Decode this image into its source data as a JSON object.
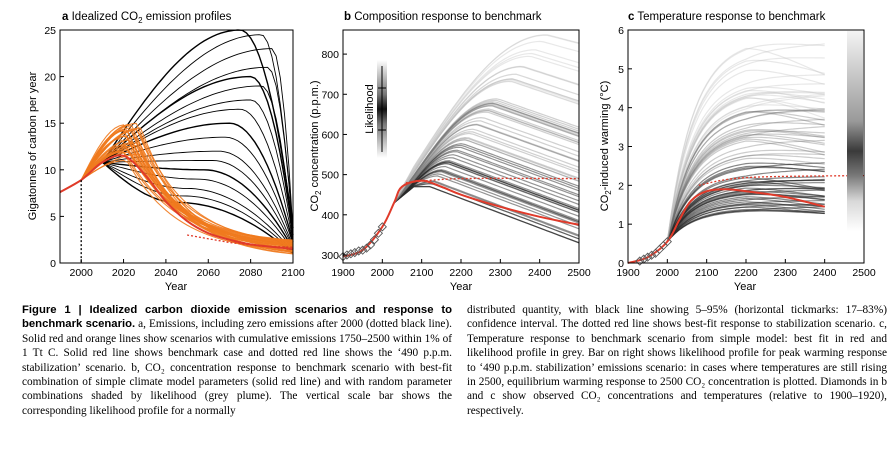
{
  "panels": [
    {
      "letter": "a",
      "title_pre": "Idealized CO",
      "title_sub": "2",
      "title_post": " emission profiles",
      "xlabel": "Year",
      "ylabel": "Gigatonnes of carbon per year",
      "xticks": [
        "2000",
        "2020",
        "2040",
        "2060",
        "2080",
        "2100"
      ],
      "yticks": [
        "0",
        "5",
        "10",
        "15",
        "20",
        "25"
      ]
    },
    {
      "letter": "b",
      "title": "Composition response to benchmark",
      "xlabel": "Year",
      "ylabel_pre": "CO",
      "ylabel_sub": "2",
      "ylabel_post": " concentration (p.p.m.)",
      "inset_label": "Likelihood",
      "xticks": [
        "1900",
        "2000",
        "2100",
        "2200",
        "2300",
        "2400",
        "2500"
      ],
      "yticks": [
        "300",
        "400",
        "500",
        "600",
        "700",
        "800"
      ]
    },
    {
      "letter": "c",
      "title": "Temperature response to benchmark",
      "xlabel": "Year",
      "ylabel_pre": "CO",
      "ylabel_sub": "2",
      "ylabel_post": "-induced warming (°C)",
      "xticks": [
        "1900",
        "2000",
        "2100",
        "2200",
        "2300",
        "2400",
        "2500"
      ],
      "yticks": [
        "0",
        "1",
        "2",
        "3",
        "4",
        "5",
        "6"
      ]
    }
  ],
  "chart_data": [
    {
      "type": "line",
      "panel": "a",
      "title": "Idealized CO2 emission profiles",
      "xlabel": "Year",
      "ylabel": "Gigatonnes of carbon per year",
      "xlim": [
        1990,
        2100
      ],
      "ylim": [
        0,
        25
      ],
      "series": [
        {
          "kind": "benchmark",
          "color": "#e03a2a",
          "x": [
            1990,
            2000,
            2010,
            2020,
            2030,
            2040,
            2050,
            2060,
            2070,
            2080,
            2100
          ],
          "y": [
            7.6,
            8.9,
            10.8,
            11.5,
            9.5,
            6.6,
            4.5,
            3.2,
            2.5,
            2.0,
            1.5
          ]
        },
        {
          "kind": "stabilization-490ppm",
          "style": "dotted",
          "color": "#e03a2a",
          "x": [
            2050,
            2070,
            2085,
            2100
          ],
          "y": [
            3.0,
            2.2,
            1.8,
            1.7
          ]
        },
        {
          "kind": "zero-after-2000",
          "style": "dotted",
          "color": "#000000",
          "x": [
            2000,
            2000
          ],
          "y": [
            8.9,
            0
          ]
        }
      ]
    },
    {
      "type": "line",
      "panel": "b",
      "title": "Composition response to benchmark",
      "xlabel": "Year",
      "ylabel": "CO2 concentration (p.p.m.)",
      "xlim": [
        1900,
        2500
      ],
      "ylim": [
        280,
        860
      ],
      "series": [
        {
          "kind": "best-fit",
          "color": "#e03a2a",
          "x": [
            1900,
            1950,
            2000,
            2030,
            2050,
            2100,
            2150,
            2200,
            2300,
            2400,
            2500
          ],
          "y": [
            296,
            312,
            370,
            430,
            470,
            485,
            470,
            450,
            420,
            395,
            375
          ]
        },
        {
          "kind": "stabilization",
          "style": "dotted",
          "color": "#e03a2a",
          "x": [
            2060,
            2200,
            2500
          ],
          "y": [
            480,
            490,
            490
          ]
        },
        {
          "kind": "observed",
          "marker": "diamond",
          "x": [
            1900,
            1910,
            1920,
            1930,
            1940,
            1950,
            1960,
            1970,
            1980,
            1990,
            2000
          ],
          "y": [
            296,
            300,
            303,
            306,
            310,
            312,
            317,
            325,
            338,
            354,
            370
          ]
        }
      ]
    },
    {
      "type": "line",
      "panel": "c",
      "title": "Temperature response to benchmark",
      "xlabel": "Year",
      "ylabel": "CO2-induced warming (°C)",
      "xlim": [
        1900,
        2500
      ],
      "ylim": [
        0,
        6
      ],
      "series": [
        {
          "kind": "best-fit",
          "color": "#e03a2a",
          "x": [
            1900,
            1950,
            2000,
            2030,
            2060,
            2100,
            2150,
            2200,
            2300,
            2400
          ],
          "y": [
            0.0,
            0.15,
            0.55,
            1.1,
            1.6,
            1.85,
            1.9,
            1.85,
            1.7,
            1.45
          ]
        },
        {
          "kind": "stabilization",
          "style": "dotted",
          "color": "#e03a2a",
          "x": [
            2080,
            2200,
            2500
          ],
          "y": [
            2.0,
            2.2,
            2.25
          ]
        },
        {
          "kind": "observed",
          "marker": "diamond",
          "x": [
            1930,
            1940,
            1950,
            1960,
            1970,
            1980,
            1990,
            2000
          ],
          "y": [
            0.05,
            0.1,
            0.15,
            0.2,
            0.25,
            0.35,
            0.45,
            0.55
          ]
        }
      ]
    }
  ],
  "caption": {
    "fig_label": "Figure 1",
    "sep": " | ",
    "heading": "Idealized carbon dioxide emission scenarios and response to benchmark scenario.",
    "col1_text": " a, Emissions, including zero emissions after 2000 (dotted black line). Solid red and orange lines show scenarios with cumulative emissions 1750–2500 within 1% of 1 Tt C. Solid red line shows benchmark case and dotted red line shows the ‘490 p.p.m. stabilization’ scenario. b, CO₂ concentration response to benchmark scenario with best-fit combination of simple climate model parameters (solid red line) and with random parameter combinations shaded by likelihood (grey plume). The vertical scale bar shows the corresponding likelihood profile for a normally",
    "col2_text": "distributed quantity, with black line showing 5–95% (horizontal tickmarks: 17–83%) confidence interval. The dotted red line shows best-fit response to stabilization scenario. c, Temperature response to benchmark scenario from simple model: best fit in red and likelihood profile in grey. Bar on right shows likelihood profile for peak warming response to ‘490 p.p.m. stabilization’ emissions scenario: in cases where temperatures are still rising in 2500, equilibrium warming response to 2500 CO₂ concentration is plotted. Diamonds in b and c show observed CO₂ concentrations and temperatures (relative to 1900–1920), respectively."
  },
  "colors": {
    "benchmark": "#e03a2a",
    "orange": "#f07a1e",
    "black": "#000000",
    "plume": "#808080"
  }
}
